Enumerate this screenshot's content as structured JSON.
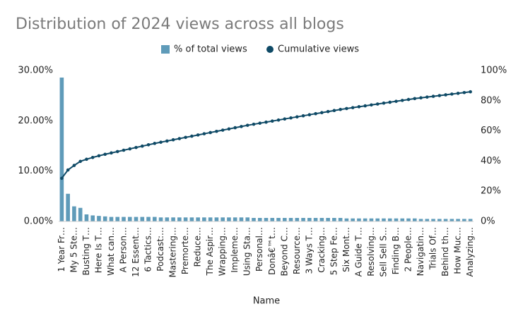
{
  "chart_data": {
    "type": "pareto",
    "title": "Distribution of 2024 views across all blogs",
    "xlabel": "Name",
    "categories": [
      "1 Year Fr…",
      null,
      "My 5 Ste…",
      null,
      "Busting T…",
      null,
      "Here Is T…",
      null,
      "What can…",
      null,
      "A Person…",
      null,
      "12 Essent…",
      null,
      "6 Tactics…",
      null,
      "Podcast:…",
      null,
      "Mastering…",
      null,
      "Premorte…",
      null,
      "Reduce…",
      null,
      "The Aspir…",
      null,
      "Wrapping…",
      null,
      "Impleme…",
      null,
      "Using Sta…",
      null,
      "Personal…",
      null,
      "Donâ€™t…",
      null,
      "Beyond C…",
      null,
      "Resource…",
      null,
      "3 Ways T…",
      null,
      "Cracking…",
      null,
      "5 Step Fe…",
      null,
      "Six Mont…",
      null,
      "A Guide T…",
      null,
      "Resolving…",
      null,
      "Sell Sell S…",
      null,
      "Finding B…",
      null,
      "2 People…",
      null,
      "Navigatin…",
      null,
      "Trials Of…",
      null,
      "Behind th…",
      null,
      "How Muc…",
      null,
      "Analyzing…"
    ],
    "series": [
      {
        "name": "% of total views",
        "color": "#5f9bb9",
        "values": [
          28.6,
          5.5,
          3.0,
          2.7,
          1.4,
          1.2,
          1.1,
          1.0,
          0.9,
          0.9,
          0.9,
          0.9,
          0.9,
          0.9,
          0.9,
          0.9,
          0.8,
          0.8,
          0.8,
          0.8,
          0.8,
          0.8,
          0.8,
          0.8,
          0.8,
          0.8,
          0.8,
          0.8,
          0.8,
          0.8,
          0.8,
          0.7,
          0.7,
          0.7,
          0.7,
          0.7,
          0.7,
          0.7,
          0.7,
          0.7,
          0.7,
          0.7,
          0.7,
          0.7,
          0.7,
          0.7,
          0.6,
          0.6,
          0.6,
          0.6,
          0.6,
          0.6,
          0.6,
          0.6,
          0.6,
          0.6,
          0.6,
          0.6,
          0.5,
          0.5,
          0.5,
          0.5,
          0.5,
          0.5,
          0.5,
          0.5,
          0.5
        ]
      },
      {
        "name": "Cumulative views",
        "color": "#0f4a66",
        "axis": "y2",
        "values": [
          28.6,
          34.1,
          37.1,
          39.8,
          41.2,
          42.4,
          43.5,
          44.5,
          45.4,
          46.3,
          47.2,
          48.1,
          49.0,
          49.9,
          50.8,
          51.7,
          52.5,
          53.3,
          54.1,
          54.9,
          55.7,
          56.5,
          57.3,
          58.1,
          58.9,
          59.7,
          60.5,
          61.3,
          62.1,
          62.9,
          63.7,
          64.4,
          65.1,
          65.8,
          66.5,
          67.2,
          67.9,
          68.6,
          69.3,
          70.0,
          70.7,
          71.4,
          72.1,
          72.8,
          73.5,
          74.2,
          74.8,
          75.4,
          76.0,
          76.6,
          77.2,
          77.8,
          78.4,
          79.0,
          79.6,
          80.2,
          80.8,
          81.4,
          81.9,
          82.4,
          82.9,
          83.4,
          83.9,
          84.4,
          84.9,
          85.4,
          85.9
        ]
      }
    ],
    "ylim": [
      0,
      30
    ],
    "yticks": [
      {
        "value": 0,
        "label": "0.00%"
      },
      {
        "value": 10,
        "label": "10.00%"
      },
      {
        "value": 20,
        "label": "20.00%"
      },
      {
        "value": 30,
        "label": "30.00%"
      }
    ],
    "y2lim": [
      0,
      100
    ],
    "y2ticks": [
      {
        "value": 0,
        "label": "0%"
      },
      {
        "value": 20,
        "label": "20%"
      },
      {
        "value": 40,
        "label": "40%"
      },
      {
        "value": 60,
        "label": "60%"
      },
      {
        "value": 80,
        "label": "80%"
      },
      {
        "value": 100,
        "label": "100%"
      }
    ],
    "legend": "top"
  }
}
